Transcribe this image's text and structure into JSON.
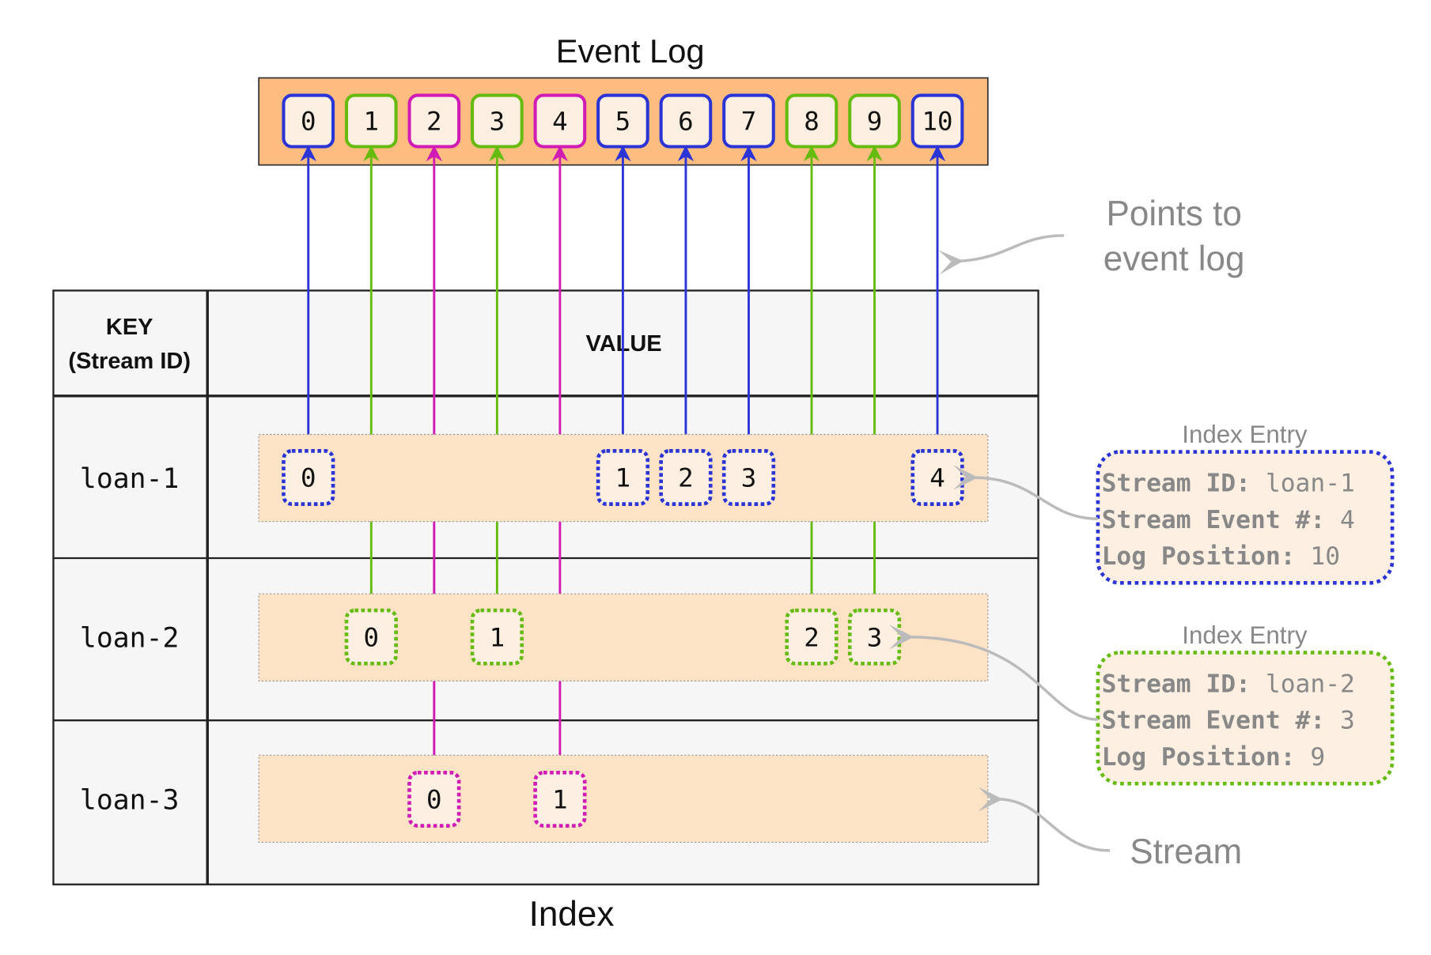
{
  "event_log": {
    "title": "Event Log",
    "entries": [
      {
        "label": "0",
        "stream": "loan-1"
      },
      {
        "label": "1",
        "stream": "loan-2"
      },
      {
        "label": "2",
        "stream": "loan-3"
      },
      {
        "label": "3",
        "stream": "loan-2"
      },
      {
        "label": "4",
        "stream": "loan-3"
      },
      {
        "label": "5",
        "stream": "loan-1"
      },
      {
        "label": "6",
        "stream": "loan-1"
      },
      {
        "label": "7",
        "stream": "loan-1"
      },
      {
        "label": "8",
        "stream": "loan-2"
      },
      {
        "label": "9",
        "stream": "loan-2"
      },
      {
        "label": "10",
        "stream": "loan-1"
      }
    ]
  },
  "colors": {
    "loan-1": "#2b35d6",
    "loan-2": "#66bb11",
    "loan-3": "#d11bb5",
    "log_background": "#fdbd80",
    "stream_background": "#fde3c6",
    "box_fill": "#fdf0e2",
    "annotation_gray": "#888888"
  },
  "index": {
    "title": "Index",
    "header_key": "KEY",
    "header_key_sub": "(Stream ID)",
    "header_value": "VALUE",
    "rows": [
      {
        "key": "loan-1",
        "entries": [
          {
            "label": "0",
            "log_position": 0
          },
          {
            "label": "1",
            "log_position": 5
          },
          {
            "label": "2",
            "log_position": 6
          },
          {
            "label": "3",
            "log_position": 7
          },
          {
            "label": "4",
            "log_position": 10
          }
        ]
      },
      {
        "key": "loan-2",
        "entries": [
          {
            "label": "0",
            "log_position": 1
          },
          {
            "label": "1",
            "log_position": 3
          },
          {
            "label": "2",
            "log_position": 8
          },
          {
            "label": "3",
            "log_position": 9
          }
        ]
      },
      {
        "key": "loan-3",
        "entries": [
          {
            "label": "0",
            "log_position": 2
          },
          {
            "label": "1",
            "log_position": 4
          }
        ]
      }
    ]
  },
  "annotations": {
    "points_to_line1": "Points to",
    "points_to_line2": "event log",
    "stream": "Stream",
    "index_entries": [
      {
        "title": "Index Entry",
        "stream": "loan-1",
        "lines": [
          {
            "label": "Stream ID:",
            "value": "loan-1"
          },
          {
            "label": "Stream Event #:",
            "value": "4"
          },
          {
            "label": "Log Position:",
            "value": "10"
          }
        ]
      },
      {
        "title": "Index Entry",
        "stream": "loan-2",
        "lines": [
          {
            "label": "Stream ID:",
            "value": "loan-2"
          },
          {
            "label": "Stream Event #:",
            "value": "3"
          },
          {
            "label": "Log Position:",
            "value": "9"
          }
        ]
      }
    ]
  }
}
